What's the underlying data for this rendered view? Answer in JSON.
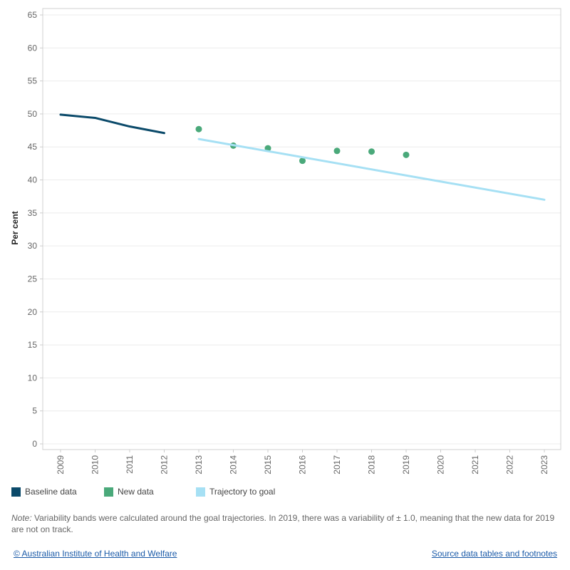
{
  "chart_data": {
    "type": "line",
    "ylabel": "Per cent",
    "xlabel": "",
    "ylim": [
      0,
      65
    ],
    "yticks": [
      0,
      5,
      10,
      15,
      20,
      25,
      30,
      35,
      40,
      45,
      50,
      55,
      60,
      65
    ],
    "x_categories": [
      "2009",
      "2010",
      "2011",
      "2012",
      "2013",
      "2014",
      "2015",
      "2016",
      "2017",
      "2018",
      "2019",
      "2020",
      "2021",
      "2022",
      "2023"
    ],
    "grid": "horizontal",
    "legend_position": "bottom-left",
    "series": [
      {
        "name": "Baseline data",
        "style": "line",
        "color": "#0b4a6a",
        "points": [
          {
            "x": "2009",
            "y": 49.9
          },
          {
            "x": "2010",
            "y": 49.4
          },
          {
            "x": "2011",
            "y": 48.1
          },
          {
            "x": "2012",
            "y": 47.1
          }
        ]
      },
      {
        "name": "New data",
        "style": "scatter",
        "color": "#4aa97a",
        "points": [
          {
            "x": "2013",
            "y": 47.7
          },
          {
            "x": "2014",
            "y": 45.2
          },
          {
            "x": "2015",
            "y": 44.8
          },
          {
            "x": "2016",
            "y": 42.9
          },
          {
            "x": "2017",
            "y": 44.4
          },
          {
            "x": "2018",
            "y": 44.3
          },
          {
            "x": "2019",
            "y": 43.8
          }
        ]
      },
      {
        "name": "Trajectory to goal",
        "style": "line",
        "color": "#a6e0f4",
        "points": [
          {
            "x": "2013",
            "y": 46.2
          },
          {
            "x": "2023",
            "y": 37.0
          }
        ]
      }
    ]
  },
  "note": {
    "label": "Note:",
    "text": " Variability bands were calculated around the goal trajectories. In 2019, there was a variability of ± 1.0, meaning that the new data for 2019 are not on track."
  },
  "footer": {
    "copyright": "© Australian Institute of Health and Welfare",
    "source_link": "Source data tables and footnotes"
  }
}
